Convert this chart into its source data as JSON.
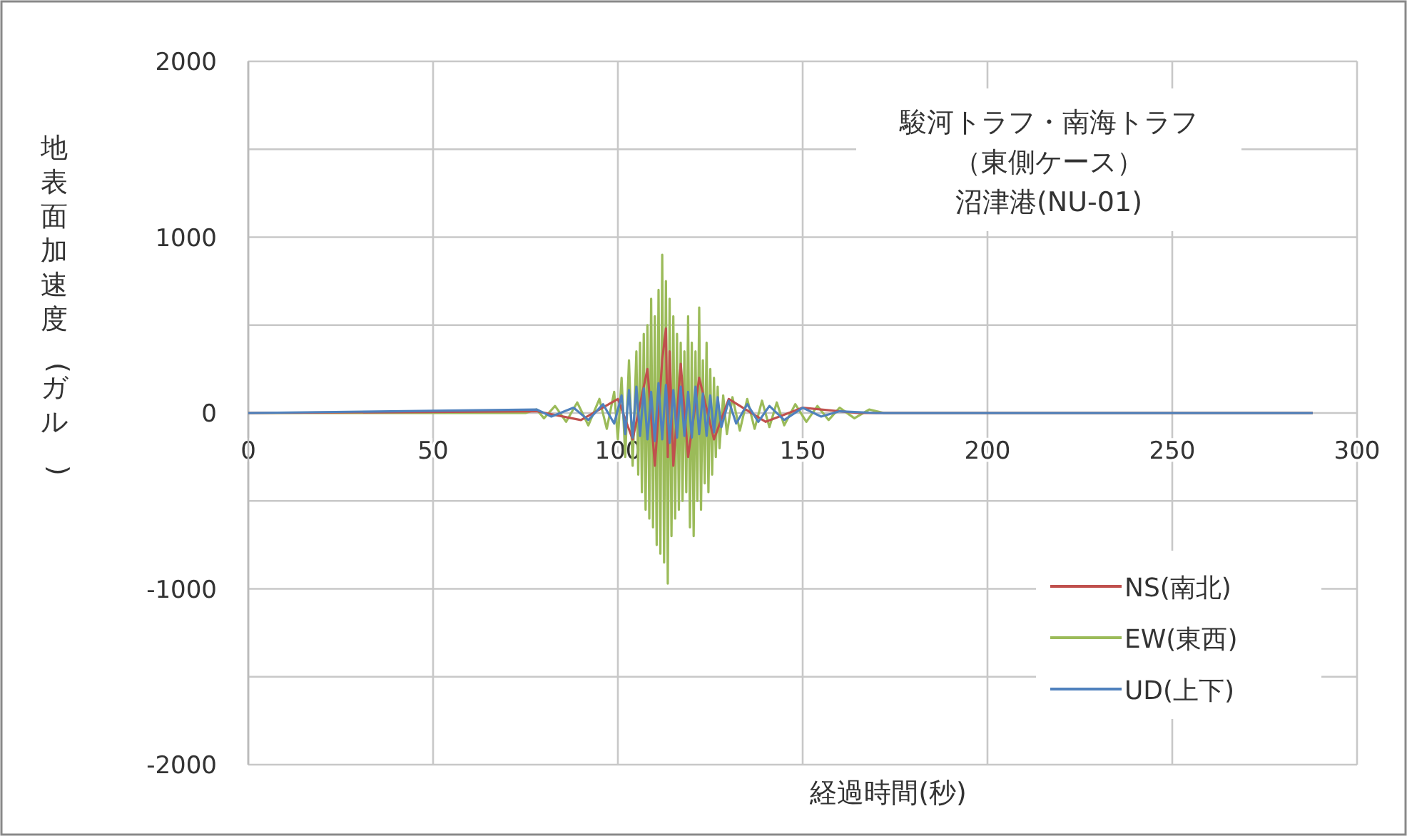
{
  "chart_data": {
    "type": "line",
    "title": "駿河トラフ・南海トラフ",
    "subtitle": "（東側ケース）",
    "annotations": [
      "沼津港(NU-01)"
    ],
    "xlabel": "経過時間(秒)",
    "ylabel": "地表面加速度(ガル)",
    "xlim": [
      0,
      300
    ],
    "xticks": [
      0,
      50,
      100,
      150,
      200,
      250,
      300
    ],
    "ylim": [
      -2000,
      2000
    ],
    "yticks": [
      -2000,
      {
        "value": -1500,
        "label": null
      },
      -1000,
      {
        "value": -500,
        "label": null
      },
      0,
      {
        "value": 500,
        "label": null
      },
      1000,
      {
        "value": 1500,
        "label": null
      },
      2000
    ],
    "grid": true,
    "legend": "bottom right",
    "marker": "none",
    "line_style": "solid",
    "series": [
      {
        "name": "NS(南北)",
        "color": "#c0504d",
        "x": [
          0,
          78,
          90,
          100,
          104,
          108,
          110,
          112,
          113,
          113.5,
          114,
          115,
          117,
          119,
          122,
          126,
          130,
          140,
          150,
          165,
          288
        ],
        "values": [
          0,
          10,
          -40,
          80,
          -150,
          250,
          -300,
          300,
          480,
          -250,
          350,
          -300,
          280,
          -250,
          200,
          -150,
          80,
          -50,
          30,
          0,
          0
        ]
      },
      {
        "name": "EW(東西)",
        "color": "#9bbb59",
        "x": [
          0,
          75,
          78,
          80,
          83,
          86,
          89,
          92,
          95,
          97,
          99,
          100,
          101,
          102,
          103,
          104,
          105,
          105.5,
          106,
          106.5,
          107,
          107.5,
          108,
          108.5,
          109,
          109.5,
          110,
          110.5,
          111,
          111.5,
          112,
          112.5,
          113,
          113.5,
          114,
          114.5,
          115,
          115.5,
          116,
          116.5,
          117,
          117.5,
          118,
          118.5,
          119,
          119.5,
          120,
          120.5,
          121,
          121.5,
          122,
          122.5,
          123,
          123.5,
          124,
          124.5,
          125,
          125.5,
          126,
          126.5,
          127,
          127.5,
          128.5,
          129.5,
          131,
          133,
          135,
          137,
          139,
          141,
          143,
          145,
          148,
          151,
          154,
          157,
          160,
          164,
          168,
          172,
          288
        ],
        "values": [
          0,
          0,
          20,
          -30,
          40,
          -50,
          60,
          -70,
          80,
          -90,
          120,
          -150,
          200,
          -250,
          300,
          -300,
          350,
          -350,
          400,
          -450,
          450,
          -550,
          500,
          -600,
          650,
          -650,
          550,
          -750,
          700,
          -800,
          900,
          -850,
          750,
          -970,
          650,
          -700,
          550,
          -600,
          450,
          -550,
          400,
          -500,
          350,
          -450,
          550,
          -650,
          400,
          -700,
          350,
          -500,
          600,
          -550,
          300,
          -400,
          400,
          -450,
          250,
          -350,
          200,
          -250,
          150,
          -200,
          100,
          -120,
          90,
          -100,
          80,
          -90,
          70,
          -80,
          60,
          -70,
          50,
          -50,
          40,
          -40,
          30,
          -30,
          20,
          0,
          0
        ]
      },
      {
        "name": "UD(上下)",
        "color": "#4f81bd",
        "x": [
          0,
          78,
          82,
          88,
          92,
          96,
          99,
          101,
          102,
          103,
          104,
          105,
          106,
          107,
          108,
          109,
          110,
          111,
          112,
          113,
          114,
          115,
          116,
          117,
          118,
          119,
          120,
          121,
          122,
          123,
          124,
          125,
          126,
          127,
          128,
          130,
          132,
          135,
          138,
          141,
          145,
          150,
          155,
          160,
          170,
          288
        ],
        "values": [
          0,
          20,
          -20,
          30,
          -40,
          50,
          -60,
          100,
          -120,
          130,
          -140,
          150,
          -130,
          140,
          -150,
          120,
          -160,
          170,
          -150,
          160,
          -170,
          130,
          -140,
          150,
          -130,
          120,
          -140,
          150,
          -120,
          110,
          -130,
          100,
          -110,
          90,
          -80,
          70,
          -60,
          50,
          -50,
          40,
          -40,
          30,
          -20,
          10,
          0,
          0
        ]
      }
    ]
  }
}
